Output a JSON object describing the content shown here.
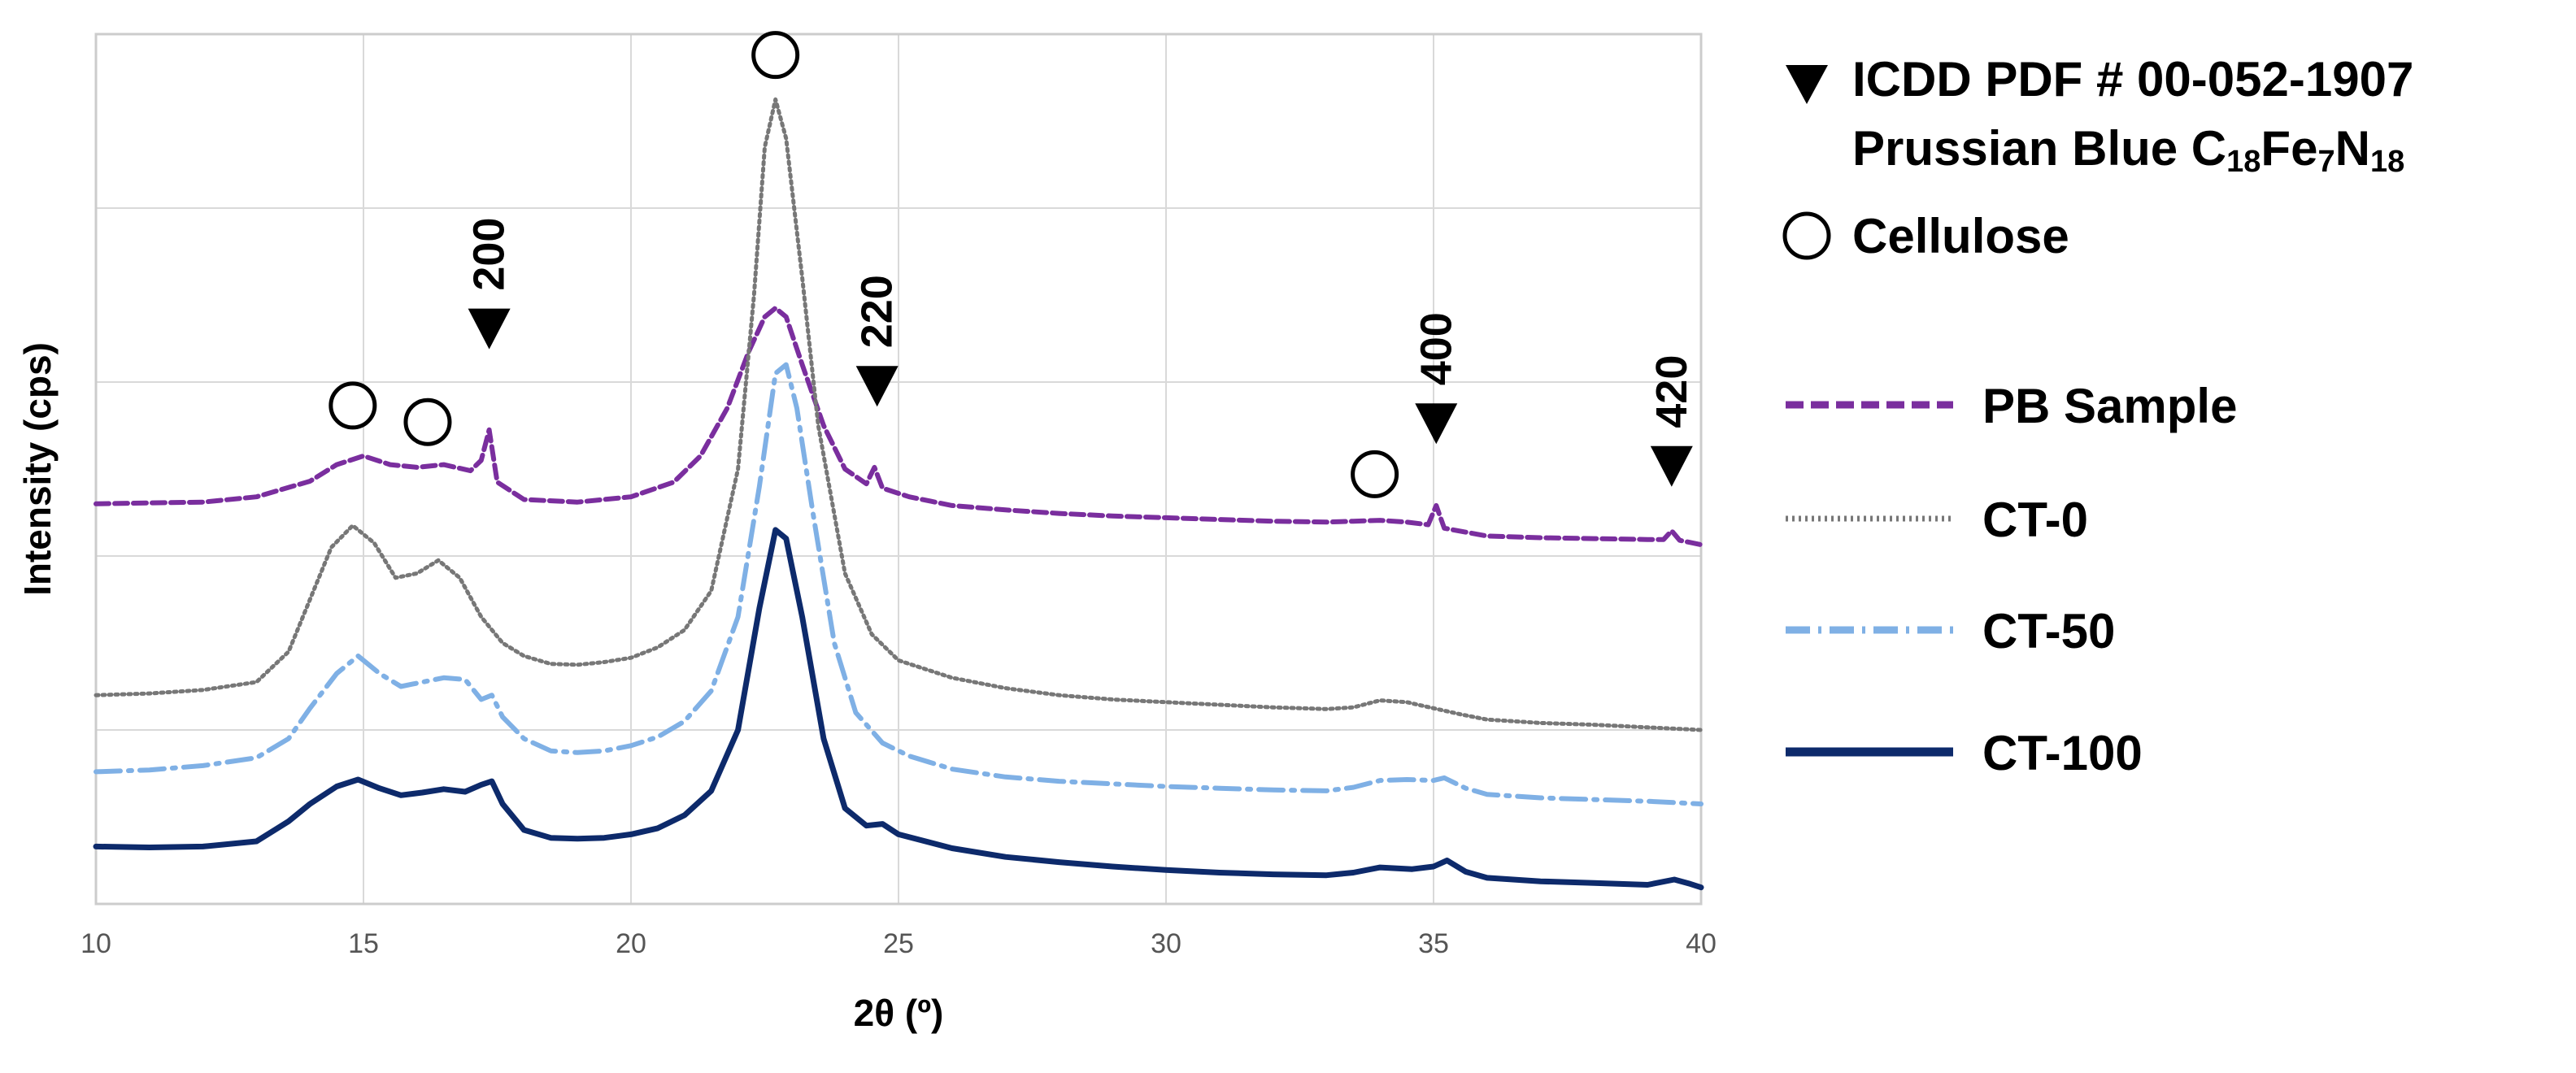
{
  "chart_data": {
    "type": "line",
    "title": "",
    "xlabel": "2θ (º)",
    "ylabel": "Intensity (cps)",
    "xlim": [
      10,
      40
    ],
    "ylim": [
      0,
      100
    ],
    "x_ticks": [
      "10",
      "15",
      "20",
      "25",
      "30",
      "35",
      "40"
    ],
    "y_tick_values": [
      0,
      20,
      40,
      60,
      80,
      100
    ],
    "y_tick_labels_shown": false,
    "grid": true,
    "legend_position": "right",
    "series": [
      {
        "name": "PB Sample",
        "color": "#7a2e9e",
        "style": "dashed",
        "points": [
          [
            10,
            46.0
          ],
          [
            11,
            46.1
          ],
          [
            12,
            46.2
          ],
          [
            13,
            46.8
          ],
          [
            14,
            48.6
          ],
          [
            14.5,
            50.5
          ],
          [
            15,
            51.5
          ],
          [
            15.5,
            50.5
          ],
          [
            16,
            50.2
          ],
          [
            16.5,
            50.5
          ],
          [
            17,
            49.8
          ],
          [
            17.2,
            51.0
          ],
          [
            17.35,
            54.5
          ],
          [
            17.5,
            48.5
          ],
          [
            18,
            46.5
          ],
          [
            19,
            46.2
          ],
          [
            20,
            46.8
          ],
          [
            20.8,
            48.5
          ],
          [
            21.3,
            51.5
          ],
          [
            21.8,
            57
          ],
          [
            22.2,
            63.5
          ],
          [
            22.5,
            67.5
          ],
          [
            22.7,
            68.5
          ],
          [
            22.9,
            67.5
          ],
          [
            23.2,
            62
          ],
          [
            23.6,
            55
          ],
          [
            24.0,
            50
          ],
          [
            24.4,
            48.3
          ],
          [
            24.55,
            50.2
          ],
          [
            24.7,
            47.8
          ],
          [
            25.2,
            46.8
          ],
          [
            26,
            45.8
          ],
          [
            27,
            45.3
          ],
          [
            28,
            44.9
          ],
          [
            29,
            44.6
          ],
          [
            30,
            44.4
          ],
          [
            31,
            44.2
          ],
          [
            32,
            44.0
          ],
          [
            33,
            43.9
          ],
          [
            33.5,
            44.0
          ],
          [
            34,
            44.1
          ],
          [
            34.5,
            43.9
          ],
          [
            34.9,
            43.6
          ],
          [
            35.05,
            45.8
          ],
          [
            35.2,
            43.2
          ],
          [
            36,
            42.3
          ],
          [
            37,
            42.1
          ],
          [
            38,
            42.0
          ],
          [
            39,
            41.9
          ],
          [
            39.3,
            41.9
          ],
          [
            39.45,
            42.9
          ],
          [
            39.6,
            41.8
          ],
          [
            40,
            41.3
          ]
        ]
      },
      {
        "name": "CT-0",
        "color": "#777777",
        "style": "dotted",
        "points": [
          [
            10,
            24.0
          ],
          [
            11,
            24.2
          ],
          [
            12,
            24.6
          ],
          [
            13,
            25.5
          ],
          [
            13.6,
            29
          ],
          [
            14,
            35
          ],
          [
            14.4,
            41
          ],
          [
            14.8,
            43.5
          ],
          [
            15.2,
            41.5
          ],
          [
            15.6,
            37.5
          ],
          [
            16,
            38
          ],
          [
            16.4,
            39.5
          ],
          [
            16.8,
            37.5
          ],
          [
            17.2,
            33
          ],
          [
            17.6,
            30
          ],
          [
            18,
            28.5
          ],
          [
            18.5,
            27.6
          ],
          [
            19,
            27.5
          ],
          [
            19.5,
            27.8
          ],
          [
            20,
            28.3
          ],
          [
            20.5,
            29.5
          ],
          [
            21,
            31.5
          ],
          [
            21.5,
            36
          ],
          [
            22,
            50
          ],
          [
            22.3,
            70
          ],
          [
            22.5,
            87
          ],
          [
            22.7,
            92.5
          ],
          [
            22.9,
            88
          ],
          [
            23.2,
            72
          ],
          [
            23.5,
            55
          ],
          [
            24,
            38
          ],
          [
            24.5,
            31
          ],
          [
            25,
            28
          ],
          [
            26,
            26
          ],
          [
            27,
            24.8
          ],
          [
            28,
            24.0
          ],
          [
            29,
            23.5
          ],
          [
            30,
            23.2
          ],
          [
            31,
            22.9
          ],
          [
            32,
            22.6
          ],
          [
            33,
            22.4
          ],
          [
            33.5,
            22.6
          ],
          [
            34,
            23.4
          ],
          [
            34.5,
            23.2
          ],
          [
            35,
            22.5
          ],
          [
            35.5,
            21.8
          ],
          [
            36,
            21.2
          ],
          [
            37,
            20.8
          ],
          [
            38,
            20.6
          ],
          [
            39,
            20.3
          ],
          [
            40,
            20.0
          ]
        ]
      },
      {
        "name": "CT-50",
        "color": "#7fb0e5",
        "style": "dash-dot",
        "points": [
          [
            10,
            15.2
          ],
          [
            11,
            15.4
          ],
          [
            12,
            15.9
          ],
          [
            13,
            16.8
          ],
          [
            13.6,
            19
          ],
          [
            14,
            22.5
          ],
          [
            14.5,
            26.5
          ],
          [
            14.9,
            28.5
          ],
          [
            15.3,
            26.5
          ],
          [
            15.7,
            25
          ],
          [
            16.1,
            25.5
          ],
          [
            16.5,
            26
          ],
          [
            16.9,
            25.8
          ],
          [
            17.2,
            23.5
          ],
          [
            17.4,
            24
          ],
          [
            17.6,
            21.5
          ],
          [
            18,
            19
          ],
          [
            18.5,
            17.6
          ],
          [
            19,
            17.4
          ],
          [
            19.5,
            17.6
          ],
          [
            20,
            18.2
          ],
          [
            20.5,
            19.2
          ],
          [
            21,
            21
          ],
          [
            21.5,
            24.5
          ],
          [
            22,
            33
          ],
          [
            22.4,
            48
          ],
          [
            22.7,
            61
          ],
          [
            22.9,
            62
          ],
          [
            23.1,
            57
          ],
          [
            23.4,
            45
          ],
          [
            23.8,
            30
          ],
          [
            24.2,
            22
          ],
          [
            24.7,
            18.5
          ],
          [
            25.2,
            17
          ],
          [
            26,
            15.5
          ],
          [
            27,
            14.6
          ],
          [
            28,
            14.1
          ],
          [
            29,
            13.8
          ],
          [
            30,
            13.5
          ],
          [
            31,
            13.3
          ],
          [
            32,
            13.1
          ],
          [
            33,
            13.0
          ],
          [
            33.5,
            13.4
          ],
          [
            34,
            14.2
          ],
          [
            34.5,
            14.3
          ],
          [
            35,
            14.2
          ],
          [
            35.2,
            14.5
          ],
          [
            35.6,
            13.3
          ],
          [
            36,
            12.6
          ],
          [
            37,
            12.2
          ],
          [
            38,
            12.0
          ],
          [
            39,
            11.8
          ],
          [
            40,
            11.5
          ]
        ]
      },
      {
        "name": "CT-100",
        "color": "#0d2a6b",
        "style": "solid",
        "points": [
          [
            10,
            6.6
          ],
          [
            11,
            6.5
          ],
          [
            12,
            6.6
          ],
          [
            13,
            7.2
          ],
          [
            13.6,
            9.5
          ],
          [
            14,
            11.5
          ],
          [
            14.5,
            13.5
          ],
          [
            14.9,
            14.3
          ],
          [
            15.3,
            13.3
          ],
          [
            15.7,
            12.5
          ],
          [
            16.1,
            12.8
          ],
          [
            16.5,
            13.2
          ],
          [
            16.9,
            12.9
          ],
          [
            17.2,
            13.7
          ],
          [
            17.4,
            14.1
          ],
          [
            17.6,
            11.5
          ],
          [
            18,
            8.5
          ],
          [
            18.5,
            7.6
          ],
          [
            19,
            7.5
          ],
          [
            19.5,
            7.6
          ],
          [
            20,
            8.0
          ],
          [
            20.5,
            8.7
          ],
          [
            21,
            10.2
          ],
          [
            21.5,
            13
          ],
          [
            22,
            20
          ],
          [
            22.4,
            34
          ],
          [
            22.7,
            43
          ],
          [
            22.9,
            42
          ],
          [
            23.2,
            33
          ],
          [
            23.6,
            19
          ],
          [
            24,
            11
          ],
          [
            24.4,
            9
          ],
          [
            24.7,
            9.2
          ],
          [
            25,
            8.0
          ],
          [
            26,
            6.4
          ],
          [
            27,
            5.4
          ],
          [
            28,
            4.8
          ],
          [
            29,
            4.3
          ],
          [
            30,
            3.9
          ],
          [
            31,
            3.6
          ],
          [
            32,
            3.4
          ],
          [
            33,
            3.3
          ],
          [
            33.5,
            3.6
          ],
          [
            34,
            4.2
          ],
          [
            34.6,
            4.0
          ],
          [
            35,
            4.3
          ],
          [
            35.25,
            5.0
          ],
          [
            35.6,
            3.7
          ],
          [
            36,
            3.0
          ],
          [
            37,
            2.6
          ],
          [
            38,
            2.4
          ],
          [
            39,
            2.2
          ],
          [
            39.5,
            2.8
          ],
          [
            39.8,
            2.3
          ],
          [
            40,
            1.9
          ]
        ]
      }
    ],
    "peak_markers": [
      {
        "symbol": "circle",
        "x": 14.8,
        "y": 57.3
      },
      {
        "symbol": "circle",
        "x": 16.2,
        "y": 55.4
      },
      {
        "symbol": "triangle",
        "x": 17.35,
        "y": 66.2,
        "label": "200"
      },
      {
        "symbol": "circle",
        "x": 22.7,
        "y": 97.6
      },
      {
        "symbol": "triangle",
        "x": 24.6,
        "y": 59.6,
        "label": "220"
      },
      {
        "symbol": "circle",
        "x": 33.9,
        "y": 49.4
      },
      {
        "symbol": "triangle",
        "x": 35.05,
        "y": 55.3,
        "label": "400"
      },
      {
        "symbol": "triangle",
        "x": 39.45,
        "y": 50.4,
        "label": "420"
      }
    ],
    "annotations": {
      "pdf_line1": "ICDD PDF # 00-052-1907",
      "pdf_line2_prefix": "Prussian Blue C",
      "sub_c": "18",
      "fe": "Fe",
      "sub_fe": "7",
      "n": "N",
      "sub_n": "18",
      "cellulose": "Cellulose"
    }
  }
}
